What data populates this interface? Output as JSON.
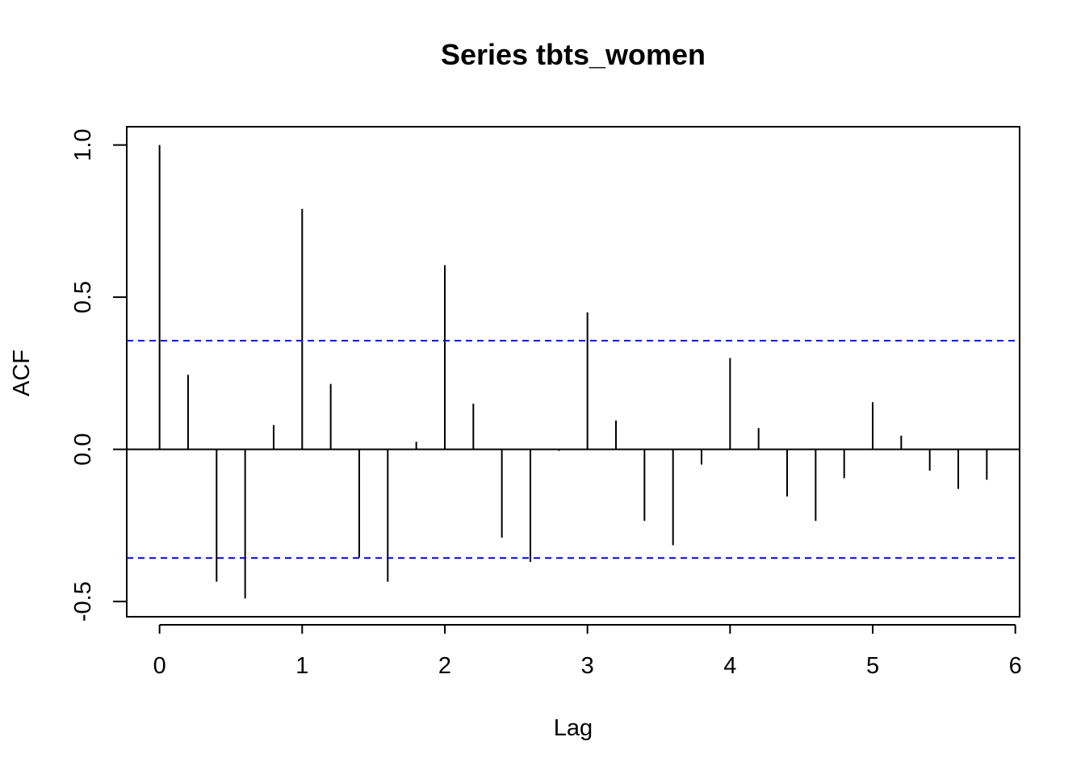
{
  "chart_data": {
    "type": "bar",
    "title": "Series  tbts_women",
    "xlabel": "Lag",
    "ylabel": "ACF",
    "xlim": [
      -0.23,
      6.03
    ],
    "ylim": [
      -0.55,
      1.06
    ],
    "x_ticks": [
      "0",
      "1",
      "2",
      "3",
      "4",
      "5",
      "6"
    ],
    "y_ticks": [
      "-0.5",
      "0.0",
      "0.5",
      "1.0"
    ],
    "confidence_bound": 0.357,
    "confidence_color": "#0000FF",
    "bar_color": "#000000",
    "grid": false,
    "legend": "none",
    "x": [
      0,
      0.2,
      0.4,
      0.6,
      0.8,
      1.0,
      1.2,
      1.4,
      1.6,
      1.8,
      2.0,
      2.2,
      2.4,
      2.6,
      2.8,
      3.0,
      3.2,
      3.4,
      3.6,
      3.8,
      4.0,
      4.2,
      4.4,
      4.6,
      4.8,
      5.0,
      5.2,
      5.4,
      5.6,
      5.8
    ],
    "values": [
      1.0,
      0.245,
      -0.435,
      -0.49,
      0.08,
      0.79,
      0.215,
      -0.355,
      -0.435,
      0.025,
      0.605,
      0.15,
      -0.29,
      -0.37,
      -0.005,
      0.45,
      0.095,
      -0.235,
      -0.315,
      -0.05,
      0.3,
      0.07,
      -0.155,
      -0.235,
      -0.095,
      0.155,
      0.045,
      -0.07,
      -0.13,
      -0.1
    ]
  }
}
